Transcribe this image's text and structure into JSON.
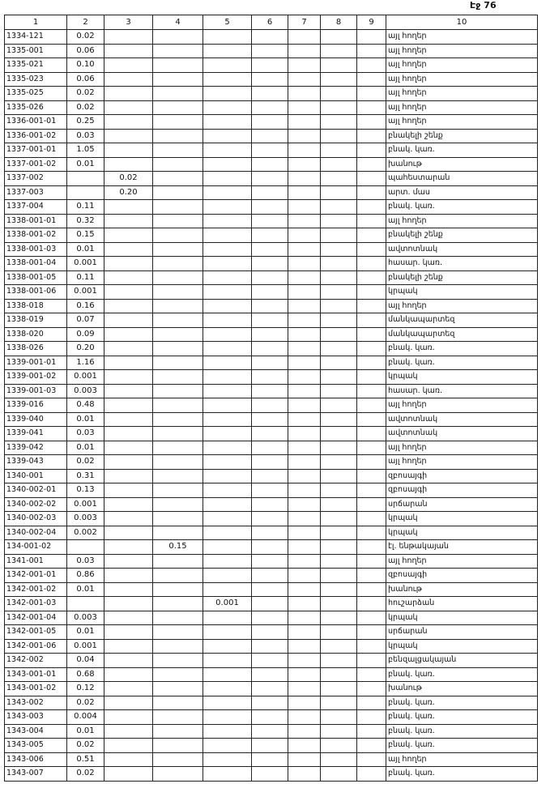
{
  "header": {
    "page_label": "Էջ 76"
  },
  "table": {
    "columns": [
      "1",
      "2",
      "3",
      "4",
      "5",
      "6",
      "7",
      "8",
      "9",
      "10"
    ],
    "rows": [
      [
        "1334-121",
        "0.02",
        null,
        null,
        null,
        null,
        null,
        null,
        null,
        "այլ հողեր"
      ],
      [
        "1335-001",
        "0.06",
        null,
        null,
        null,
        null,
        null,
        null,
        null,
        "այլ հողեր"
      ],
      [
        "1335-021",
        "0.10",
        null,
        null,
        null,
        null,
        null,
        null,
        null,
        "այլ հողեր"
      ],
      [
        "1335-023",
        "0.06",
        null,
        null,
        null,
        null,
        null,
        null,
        null,
        "այլ հողեր"
      ],
      [
        "1335-025",
        "0.02",
        null,
        null,
        null,
        null,
        null,
        null,
        null,
        "այլ հողեր"
      ],
      [
        "1335-026",
        "0.02",
        null,
        null,
        null,
        null,
        null,
        null,
        null,
        "այլ հողեր"
      ],
      [
        "1336-001-01",
        "0.25",
        null,
        null,
        null,
        null,
        null,
        null,
        null,
        "այլ հողեր"
      ],
      [
        "1336-001-02",
        "0.03",
        null,
        null,
        null,
        null,
        null,
        null,
        null,
        "բնակելի շենք"
      ],
      [
        "1337-001-01",
        "1.05",
        null,
        null,
        null,
        null,
        null,
        null,
        null,
        "բնակ. կառ."
      ],
      [
        "1337-001-02",
        "0.01",
        null,
        null,
        null,
        null,
        null,
        null,
        null,
        "խանութ"
      ],
      [
        "1337-002",
        null,
        "0.02",
        null,
        null,
        null,
        null,
        null,
        null,
        "պահեստարան"
      ],
      [
        "1337-003",
        null,
        "0.20",
        null,
        null,
        null,
        null,
        null,
        null,
        "արտ. մաս"
      ],
      [
        "1337-004",
        "0.11",
        null,
        null,
        null,
        null,
        null,
        null,
        null,
        "բնակ. կառ."
      ],
      [
        "1338-001-01",
        "0.32",
        null,
        null,
        null,
        null,
        null,
        null,
        null,
        "այլ հողեր"
      ],
      [
        "1338-001-02",
        "0.15",
        null,
        null,
        null,
        null,
        null,
        null,
        null,
        "բնակելի շենք"
      ],
      [
        "1338-001-03",
        "0.01",
        null,
        null,
        null,
        null,
        null,
        null,
        null,
        "ավտոտնակ"
      ],
      [
        "1338-001-04",
        "0.001",
        null,
        null,
        null,
        null,
        null,
        null,
        null,
        "հասար. կառ."
      ],
      [
        "1338-001-05",
        "0.11",
        null,
        null,
        null,
        null,
        null,
        null,
        null,
        "բնակելի շենք"
      ],
      [
        "1338-001-06",
        "0.001",
        null,
        null,
        null,
        null,
        null,
        null,
        null,
        "կրպակ"
      ],
      [
        "1338-018",
        "0.16",
        null,
        null,
        null,
        null,
        null,
        null,
        null,
        "այլ հողեր"
      ],
      [
        "1338-019",
        "0.07",
        null,
        null,
        null,
        null,
        null,
        null,
        null,
        "մանկապարտեզ"
      ],
      [
        "1338-020",
        "0.09",
        null,
        null,
        null,
        null,
        null,
        null,
        null,
        "մանկապարտեզ"
      ],
      [
        "1338-026",
        "0.20",
        null,
        null,
        null,
        null,
        null,
        null,
        null,
        "բնակ. կառ."
      ],
      [
        "1339-001-01",
        "1.16",
        null,
        null,
        null,
        null,
        null,
        null,
        null,
        "բնակ. կառ."
      ],
      [
        "1339-001-02",
        "0.001",
        null,
        null,
        null,
        null,
        null,
        null,
        null,
        "կրպակ"
      ],
      [
        "1339-001-03",
        "0.003",
        null,
        null,
        null,
        null,
        null,
        null,
        null,
        "հասար. կառ."
      ],
      [
        "1339-016",
        "0.48",
        null,
        null,
        null,
        null,
        null,
        null,
        null,
        "այլ հողեր"
      ],
      [
        "1339-040",
        "0.01",
        null,
        null,
        null,
        null,
        null,
        null,
        null,
        "ավտոտնակ"
      ],
      [
        "1339-041",
        "0.03",
        null,
        null,
        null,
        null,
        null,
        null,
        null,
        "ավտոտնակ"
      ],
      [
        "1339-042",
        "0.01",
        null,
        null,
        null,
        null,
        null,
        null,
        null,
        "այլ հողեր"
      ],
      [
        "1339-043",
        "0.02",
        null,
        null,
        null,
        null,
        null,
        null,
        null,
        "այլ հողեր"
      ],
      [
        "1340-001",
        "0.31",
        null,
        null,
        null,
        null,
        null,
        null,
        null,
        "զբոսայգի"
      ],
      [
        "1340-002-01",
        "0.13",
        null,
        null,
        null,
        null,
        null,
        null,
        null,
        "զբոսայգի"
      ],
      [
        "1340-002-02",
        "0.001",
        null,
        null,
        null,
        null,
        null,
        null,
        null,
        "սրճարան"
      ],
      [
        "1340-002-03",
        "0.003",
        null,
        null,
        null,
        null,
        null,
        null,
        null,
        "կրպակ"
      ],
      [
        "1340-002-04",
        "0.002",
        null,
        null,
        null,
        null,
        null,
        null,
        null,
        "կրպակ"
      ],
      [
        "134-001-02",
        null,
        null,
        "0.15",
        null,
        null,
        null,
        null,
        null,
        "էլ. ենթակայան"
      ],
      [
        "1341-001",
        "0.03",
        null,
        null,
        null,
        null,
        null,
        null,
        null,
        "այլ հողեր"
      ],
      [
        "1342-001-01",
        "0.86",
        null,
        null,
        null,
        null,
        null,
        null,
        null,
        "զբոսայգի"
      ],
      [
        "1342-001-02",
        "0.01",
        null,
        null,
        null,
        null,
        null,
        null,
        null,
        "խանութ"
      ],
      [
        "1342-001-03",
        null,
        null,
        null,
        "0.001",
        null,
        null,
        null,
        null,
        "հուշարձան"
      ],
      [
        "1342-001-04",
        "0.003",
        null,
        null,
        null,
        null,
        null,
        null,
        null,
        "կրպակ"
      ],
      [
        "1342-001-05",
        "0.01",
        null,
        null,
        null,
        null,
        null,
        null,
        null,
        "սրճարան"
      ],
      [
        "1342-001-06",
        "0.001",
        null,
        null,
        null,
        null,
        null,
        null,
        null,
        "կրպակ"
      ],
      [
        "1342-002",
        "0.04",
        null,
        null,
        null,
        null,
        null,
        null,
        null,
        "բենզալցակայան"
      ],
      [
        "1343-001-01",
        "0.68",
        null,
        null,
        null,
        null,
        null,
        null,
        null,
        "բնակ. կառ."
      ],
      [
        "1343-001-02",
        "0.12",
        null,
        null,
        null,
        null,
        null,
        null,
        null,
        "խանութ"
      ],
      [
        "1343-002",
        "0.02",
        null,
        null,
        null,
        null,
        null,
        null,
        null,
        "բնակ. կառ."
      ],
      [
        "1343-003",
        "0.004",
        null,
        null,
        null,
        null,
        null,
        null,
        null,
        "բնակ. կառ."
      ],
      [
        "1343-004",
        "0.01",
        null,
        null,
        null,
        null,
        null,
        null,
        null,
        "բնակ. կառ."
      ],
      [
        "1343-005",
        "0.02",
        null,
        null,
        null,
        null,
        null,
        null,
        null,
        "բնակ. կառ."
      ],
      [
        "1343-006",
        "0.51",
        null,
        null,
        null,
        null,
        null,
        null,
        null,
        "այլ հողեր"
      ],
      [
        "1343-007",
        "0.02",
        null,
        null,
        null,
        null,
        null,
        null,
        null,
        "բնակ. կառ."
      ]
    ]
  }
}
